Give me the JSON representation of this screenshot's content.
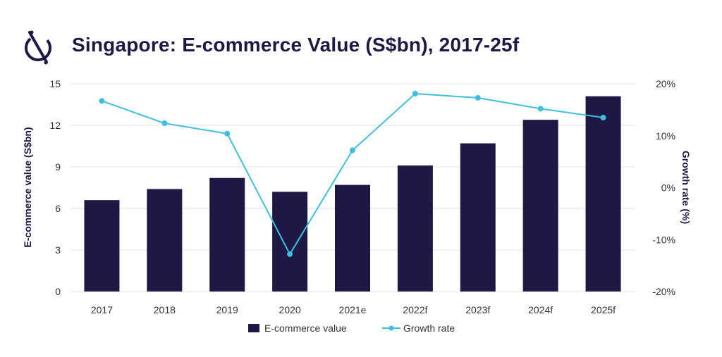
{
  "title": "Singapore: E-commerce Value (S$bn), 2017-25f",
  "logo_icon": "brand-logo-icon",
  "colors": {
    "bar": "#1e1845",
    "line": "#3fbfdf",
    "title": "#1e1845",
    "grid": "#e3e3e3"
  },
  "chart_data": {
    "type": "bar",
    "title": "Singapore: E-commerce Value (S$bn), 2017-25f",
    "categories": [
      "2017",
      "2018",
      "2019",
      "2020",
      "2021e",
      "2022f",
      "2023f",
      "2024f",
      "2025f"
    ],
    "series": [
      {
        "name": "E-commerce value",
        "type": "bar",
        "axis": "left",
        "values": [
          6.6,
          7.4,
          8.2,
          7.2,
          7.7,
          9.1,
          10.7,
          12.4,
          14.1
        ]
      },
      {
        "name": "Growth rate",
        "type": "line",
        "axis": "right",
        "values": [
          16.7,
          12.4,
          10.4,
          -12.8,
          7.2,
          18.1,
          17.3,
          15.2,
          13.5
        ]
      }
    ],
    "ylabel": "E-commerce value (S$bn)",
    "ylabel_right": "Growth rate (%)",
    "ylim": [
      0,
      15
    ],
    "yticks": [
      "0",
      "3",
      "6",
      "9",
      "12",
      "15"
    ],
    "ylim_right": [
      -20,
      20
    ],
    "yticks_right": [
      "-20%",
      "-10%",
      "0%",
      "10%",
      "20%"
    ],
    "grid": true,
    "legend": "bottom"
  }
}
